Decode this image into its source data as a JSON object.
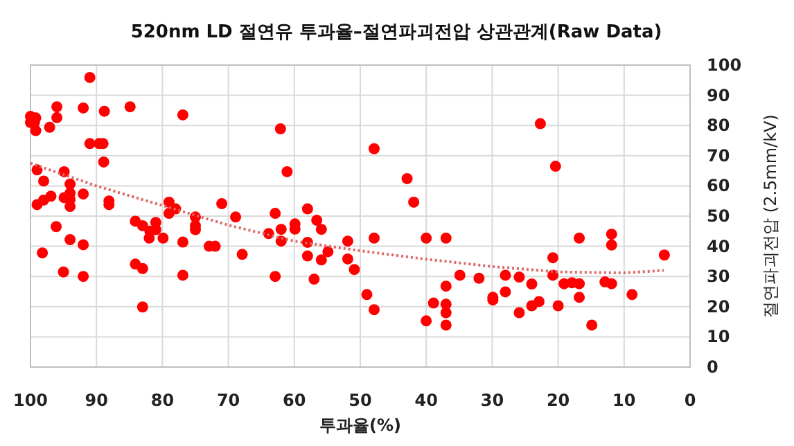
{
  "chart_data": {
    "type": "scatter",
    "title": "520nm LD 절연유 투과율–절연파괴전압 상관관계(Raw Data)",
    "xlabel": "투과율(%)",
    "ylabel": "절연파괴전압 (2.5mm/kV)",
    "xlim": [
      100,
      0
    ],
    "xticks": [
      100,
      90,
      80,
      70,
      60,
      50,
      40,
      30,
      20,
      10,
      0
    ],
    "ylim": [
      0,
      100
    ],
    "yticks": [
      0,
      10,
      20,
      30,
      40,
      50,
      60,
      70,
      80,
      90,
      100
    ],
    "grid": true,
    "marker": "circle",
    "series": [
      {
        "type": "scatter",
        "color": "#ff0000",
        "x": [
          91.0,
          96.0,
          92.0,
          88.8,
          84.9,
          76.9,
          62.1,
          100.0,
          99.2,
          100.0,
          99.4,
          99.2,
          96.0,
          97.1,
          91.0,
          89.6,
          89.0,
          88.9,
          99.0,
          94.9,
          98.0,
          94.0,
          61.1,
          94.0,
          92.0,
          96.9,
          98.0,
          94.9,
          94.0,
          94.0,
          99.0,
          88.1,
          88.1,
          79.0,
          78.0,
          79.0,
          71.0,
          75.0,
          68.9,
          62.9,
          62.0,
          62.0,
          63.9,
          75.0,
          75.0,
          84.1,
          83.0,
          81.0,
          81.9,
          81.0,
          82.0,
          79.9,
          76.9,
          72.9,
          72.0,
          67.9,
          96.1,
          94.0,
          92.0,
          98.2,
          95.0,
          92.0,
          84.1,
          83.0,
          76.9,
          62.9,
          83.0,
          47.9,
          42.9,
          41.9,
          58.0,
          56.6,
          55.9,
          59.9,
          59.9,
          58.0,
          51.9,
          47.9,
          40.0,
          37.0,
          58.0,
          54.9,
          55.9,
          51.9,
          57.0,
          50.9,
          49.0,
          47.9,
          34.9,
          32.0,
          28.0,
          25.9,
          37.0,
          38.9,
          37.0,
          37.0,
          40.0,
          37.0,
          29.9,
          29.9,
          28.0,
          25.9,
          22.7,
          20.4,
          16.8,
          11.9,
          11.9,
          20.8,
          3.9,
          20.8,
          24.0,
          19.1,
          17.9,
          16.8,
          12.9,
          11.9,
          16.8,
          8.8,
          22.9,
          24.0,
          20.0,
          14.9
        ],
        "values": [
          95.9,
          86.2,
          85.8,
          84.7,
          86.2,
          83.5,
          78.9,
          83.0,
          82.5,
          81.0,
          81.0,
          78.3,
          82.6,
          79.4,
          74.0,
          74.0,
          74.0,
          67.9,
          65.3,
          64.7,
          61.6,
          60.6,
          64.7,
          57.6,
          57.3,
          56.6,
          55.3,
          56.1,
          55.5,
          53.2,
          53.8,
          55.0,
          53.8,
          54.6,
          52.4,
          50.9,
          54.1,
          49.7,
          49.7,
          50.9,
          45.6,
          41.7,
          44.2,
          46.8,
          45.5,
          48.3,
          46.8,
          47.9,
          45.0,
          45.5,
          42.7,
          42.7,
          41.4,
          40.0,
          40.0,
          37.3,
          46.5,
          42.2,
          40.5,
          37.8,
          31.5,
          30.0,
          34.1,
          32.6,
          30.4,
          30.0,
          19.9,
          72.3,
          62.4,
          54.6,
          52.4,
          48.6,
          45.6,
          47.4,
          45.7,
          41.3,
          41.7,
          42.7,
          42.7,
          42.7,
          36.8,
          38.2,
          35.5,
          35.8,
          29.1,
          32.3,
          24.0,
          19.0,
          30.4,
          29.4,
          30.4,
          29.8,
          26.8,
          21.2,
          20.8,
          18.0,
          15.3,
          13.9,
          23.1,
          22.2,
          24.9,
          18.0,
          80.6,
          66.5,
          42.7,
          44.0,
          40.4,
          36.2,
          37.1,
          30.4,
          27.5,
          27.6,
          27.9,
          27.6,
          28.2,
          27.6,
          23.1,
          24.0,
          21.7,
          20.3,
          20.3,
          13.9
        ]
      },
      {
        "type": "line",
        "color": "#e06666",
        "line_style": "dotted",
        "marker": "none",
        "x": [
          100,
          90,
          80,
          70,
          60,
          50,
          40,
          30,
          20,
          10,
          4
        ],
        "values": [
          67.5,
          60.0,
          53.5,
          47.0,
          41.7,
          38.5,
          35.7,
          33.3,
          31.5,
          31.2,
          32.0
        ]
      }
    ]
  }
}
